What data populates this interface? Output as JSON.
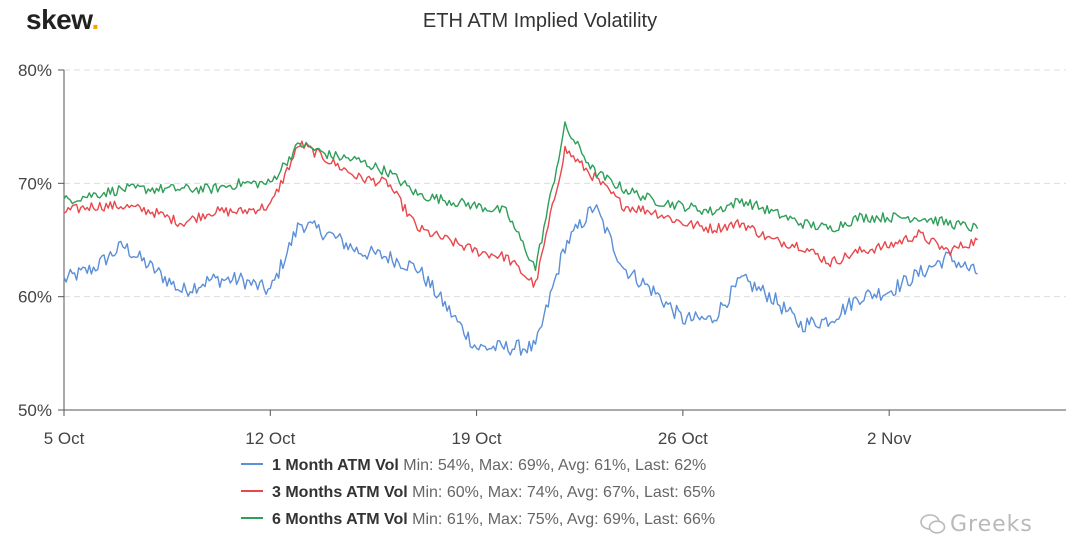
{
  "brand": {
    "logo_text": "skew",
    "logo_dot": "."
  },
  "watermark": {
    "text": "Greeks",
    "icon": "wechat-icon"
  },
  "chart_data": {
    "type": "line",
    "title": "ETH ATM Implied Volatility",
    "xlabel": "",
    "ylabel": "",
    "x_ticks": [
      "5 Oct",
      "12 Oct",
      "19 Oct",
      "26 Oct",
      "2 Nov"
    ],
    "x_range_days": [
      "2020-10-05",
      "2020-11-08"
    ],
    "y_ticks": [
      "50%",
      "60%",
      "70%",
      "80%"
    ],
    "ylim": [
      50,
      80
    ],
    "grid": "horizontal dashed",
    "legend_position": "bottom",
    "x": [
      "2020-10-05",
      "2020-10-06",
      "2020-10-07",
      "2020-10-08",
      "2020-10-09",
      "2020-10-10",
      "2020-10-11",
      "2020-10-12",
      "2020-10-13",
      "2020-10-14",
      "2020-10-15",
      "2020-10-16",
      "2020-10-17",
      "2020-10-18",
      "2020-10-19",
      "2020-10-20",
      "2020-10-21",
      "2020-10-22",
      "2020-10-23",
      "2020-10-24",
      "2020-10-25",
      "2020-10-26",
      "2020-10-27",
      "2020-10-28",
      "2020-10-29",
      "2020-10-30",
      "2020-10-31",
      "2020-11-01",
      "2020-11-02",
      "2020-11-03",
      "2020-11-04",
      "2020-11-05"
    ],
    "series": [
      {
        "name": "1 Month ATM Vol",
        "color": "#5b8fd8",
        "stats": "Min: 54%, Max: 69%, Avg: 61%, Last: 62%",
        "values": [
          61.5,
          62.5,
          64.5,
          62.5,
          60.5,
          61.5,
          61.5,
          60.5,
          66.5,
          65.5,
          64.0,
          63.5,
          62.5,
          59.0,
          55.5,
          55.5,
          55.5,
          64.5,
          68.0,
          62.5,
          60.5,
          58.0,
          58.0,
          61.5,
          60.0,
          57.5,
          58.0,
          60.0,
          60.5,
          62.0,
          63.5,
          62.0
        ]
      },
      {
        "name": "3 Months ATM Vol",
        "color": "#e8474c",
        "stats": "Min: 60%, Max: 74%, Avg: 67%, Last: 65%",
        "values": [
          67.5,
          68.0,
          68.0,
          67.5,
          66.5,
          67.5,
          67.5,
          68.0,
          73.5,
          72.0,
          70.5,
          70.0,
          66.0,
          65.0,
          64.0,
          63.5,
          61.0,
          73.0,
          70.5,
          68.0,
          67.5,
          66.5,
          66.0,
          66.5,
          65.0,
          64.5,
          63.0,
          64.0,
          64.5,
          65.5,
          64.0,
          65.0
        ]
      },
      {
        "name": "6 Months ATM Vol",
        "color": "#2e9e58",
        "stats": "Min: 61%, Max: 75%, Avg: 69%, Last: 66%",
        "values": [
          68.5,
          69.0,
          69.5,
          69.5,
          69.5,
          69.5,
          70.0,
          70.0,
          73.5,
          72.5,
          72.0,
          71.0,
          69.0,
          68.5,
          68.0,
          67.5,
          62.5,
          75.0,
          71.0,
          69.5,
          68.5,
          68.0,
          67.5,
          68.5,
          67.5,
          66.5,
          66.0,
          67.0,
          67.0,
          67.0,
          66.5,
          66.0
        ]
      }
    ]
  }
}
